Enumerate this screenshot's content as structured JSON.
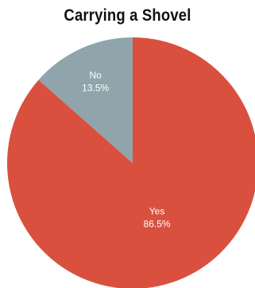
{
  "chart_data": {
    "type": "pie",
    "title": "Carrying a Shovel",
    "slices": [
      {
        "label": "No",
        "value": 13.5,
        "value_label": "13.5%",
        "color": "#8fa5ab"
      },
      {
        "label": "Yes",
        "value": 86.5,
        "value_label": "86.5%",
        "color": "#d9503f"
      }
    ],
    "start_angle": "12 o'clock",
    "direction": "counterclockwise-from-top for first slice",
    "legend": "none"
  }
}
